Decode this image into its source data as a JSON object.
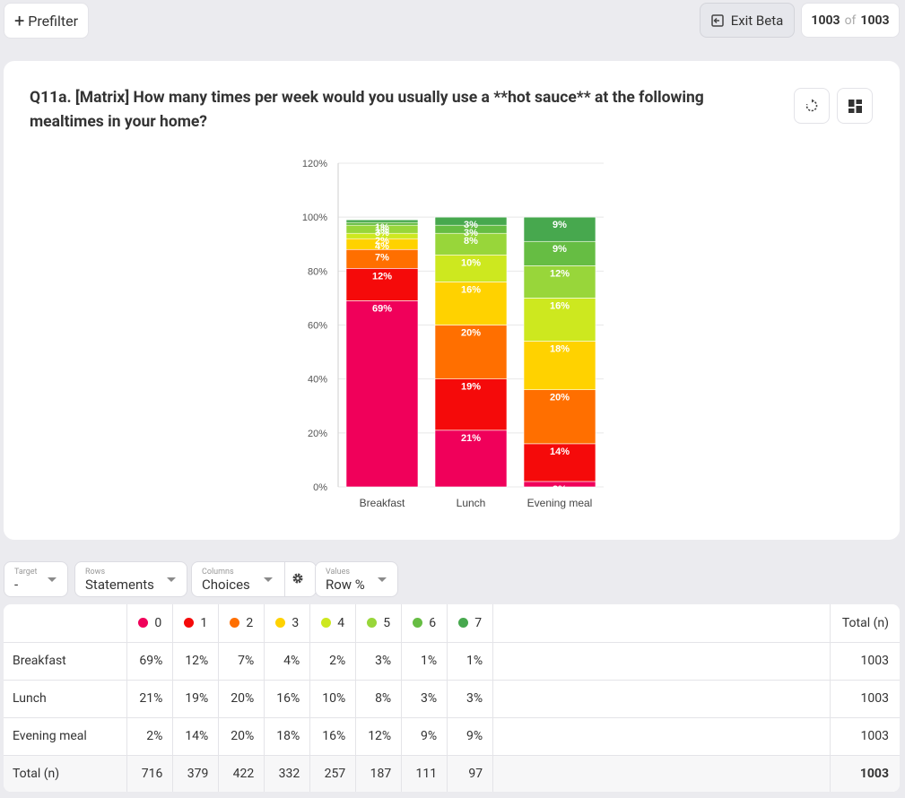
{
  "toolbar": {
    "prefilter_label": "Prefilter",
    "exit_beta_label": "Exit Beta",
    "count_current": "1003",
    "count_of": "of",
    "count_total": "1003"
  },
  "question": {
    "title": "Q11a. [Matrix] How many times per week would you usually use a **hot sauce** at the following mealtimes in your home?"
  },
  "chart_data": {
    "type": "bar",
    "stacked": true,
    "categories": [
      "Breakfast",
      "Lunch",
      "Evening meal"
    ],
    "ylim": [
      0,
      120
    ],
    "yticks": [
      "0%",
      "20%",
      "40%",
      "60%",
      "80%",
      "100%",
      "120%"
    ],
    "series": [
      {
        "name": "0",
        "color": "#f0005a",
        "values": [
          69,
          21,
          2
        ]
      },
      {
        "name": "1",
        "color": "#f50a0a",
        "values": [
          12,
          19,
          14
        ]
      },
      {
        "name": "2",
        "color": "#ff6f00",
        "values": [
          7,
          20,
          20
        ]
      },
      {
        "name": "3",
        "color": "#ffd200",
        "values": [
          4,
          16,
          18
        ]
      },
      {
        "name": "4",
        "color": "#cde81f",
        "values": [
          2,
          10,
          16
        ]
      },
      {
        "name": "5",
        "color": "#98d63a",
        "values": [
          3,
          8,
          12
        ]
      },
      {
        "name": "6",
        "color": "#66bd43",
        "values": [
          1,
          3,
          9
        ]
      },
      {
        "name": "7",
        "color": "#47a84e",
        "values": [
          1,
          3,
          9
        ]
      }
    ]
  },
  "controls": {
    "target": {
      "label": "Target",
      "value": "-"
    },
    "rows": {
      "label": "Rows",
      "value": "Statements"
    },
    "columns": {
      "label": "Columns",
      "value": "Choices"
    },
    "values": {
      "label": "Values",
      "value": "Row %"
    }
  },
  "table": {
    "total_header": "Total (n)",
    "columns": [
      "0",
      "1",
      "2",
      "3",
      "4",
      "5",
      "6",
      "7"
    ],
    "rows": [
      {
        "label": "Breakfast",
        "cells": [
          "69%",
          "12%",
          "7%",
          "4%",
          "2%",
          "3%",
          "1%",
          "1%"
        ],
        "total": "1003"
      },
      {
        "label": "Lunch",
        "cells": [
          "21%",
          "19%",
          "20%",
          "16%",
          "10%",
          "8%",
          "3%",
          "3%"
        ],
        "total": "1003"
      },
      {
        "label": "Evening meal",
        "cells": [
          "2%",
          "14%",
          "20%",
          "18%",
          "16%",
          "12%",
          "9%",
          "9%"
        ],
        "total": "1003"
      }
    ],
    "totals_row": {
      "label": "Total (n)",
      "cells": [
        "716",
        "379",
        "422",
        "332",
        "257",
        "187",
        "111",
        "97"
      ],
      "total": "1003"
    }
  }
}
